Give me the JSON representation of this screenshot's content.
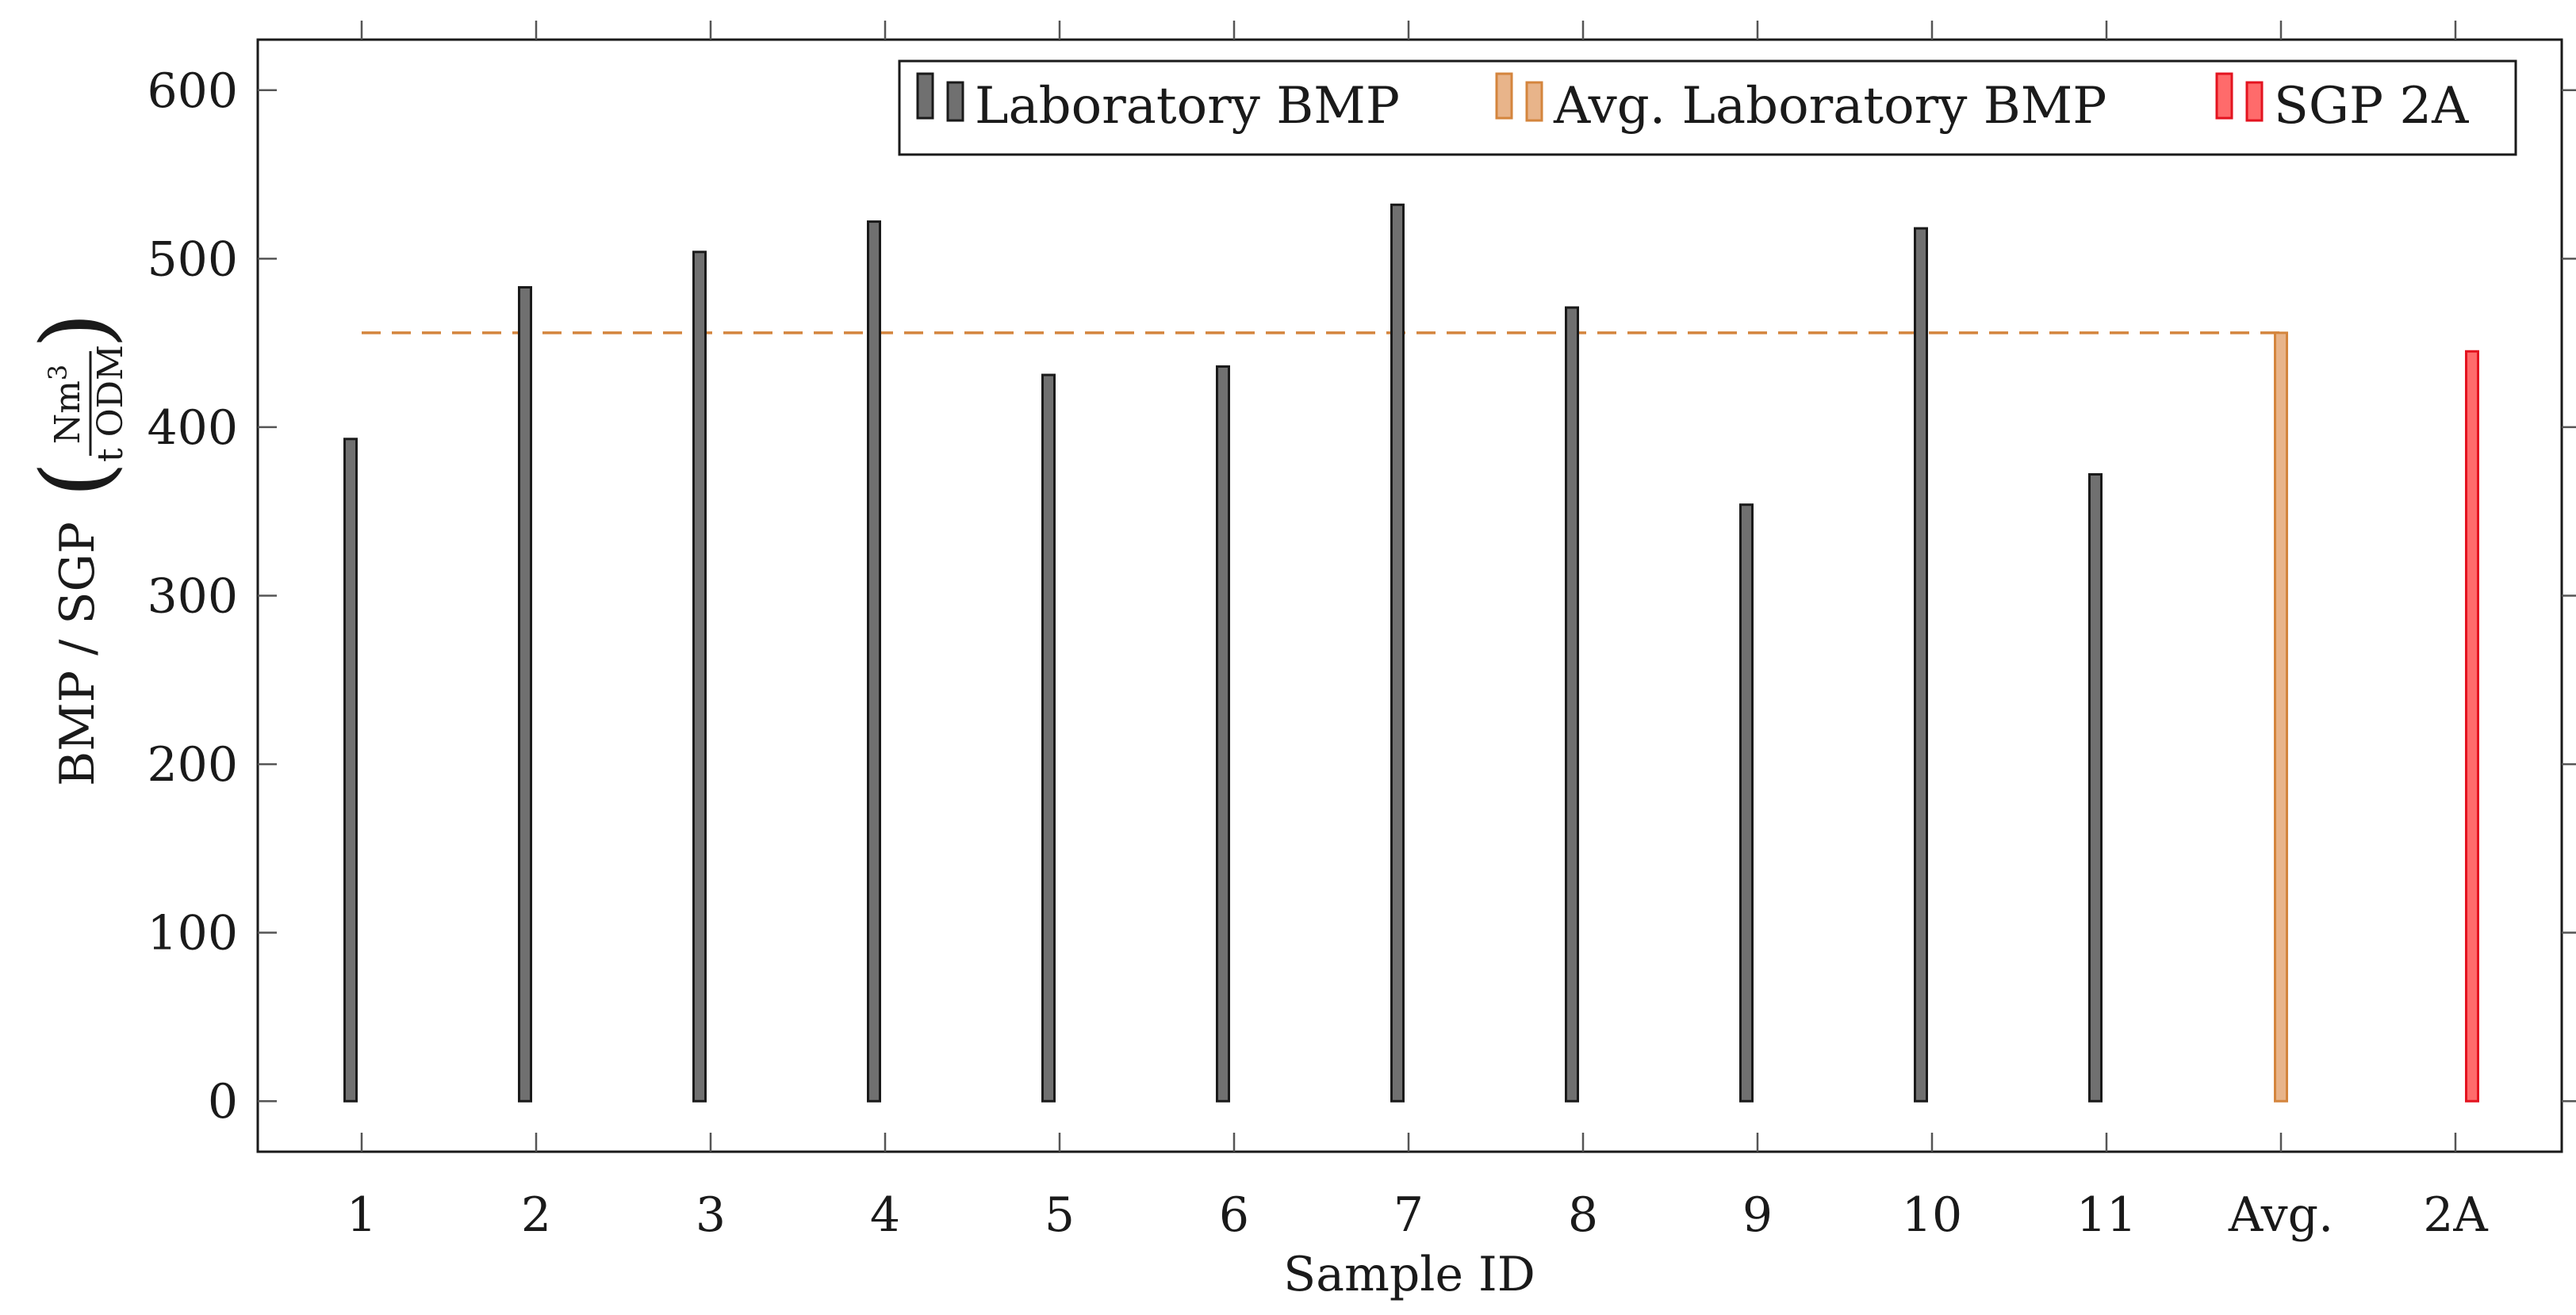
{
  "chart_data": {
    "type": "bar",
    "categories": [
      "1",
      "2",
      "3",
      "4",
      "5",
      "6",
      "7",
      "8",
      "9",
      "10",
      "11",
      "Avg.",
      "2A"
    ],
    "series": [
      {
        "name": "Laboratory BMP",
        "color": "#707070",
        "stroke": "#1a1a1a",
        "values": [
          393,
          483,
          504,
          522,
          431,
          436,
          532,
          471,
          354,
          518,
          372,
          null,
          null
        ]
      },
      {
        "name": "Avg. Laboratory BMP",
        "color": "#e8b48a",
        "stroke": "#d4853d",
        "values": [
          null,
          null,
          null,
          null,
          null,
          null,
          null,
          null,
          null,
          null,
          null,
          456,
          null
        ]
      },
      {
        "name": "SGP 2A",
        "color": "#ff6b6b",
        "stroke": "#e3131f",
        "values": [
          null,
          null,
          null,
          null,
          null,
          null,
          null,
          null,
          null,
          null,
          null,
          null,
          445
        ]
      }
    ],
    "reference_line": {
      "value": 456,
      "style": "dashed",
      "color": "#d4853d",
      "from": "1",
      "to": "Avg."
    },
    "xlabel": "Sample ID",
    "ylabel": {
      "prefix": "BMP / SGP",
      "numerator": "Nm",
      "numerator_sup": "3",
      "denominator": "t ODM"
    },
    "ylim": [
      -30,
      630
    ],
    "yticks": [
      0,
      100,
      200,
      300,
      400,
      500,
      600
    ],
    "grid": false,
    "legend": "top-right"
  }
}
